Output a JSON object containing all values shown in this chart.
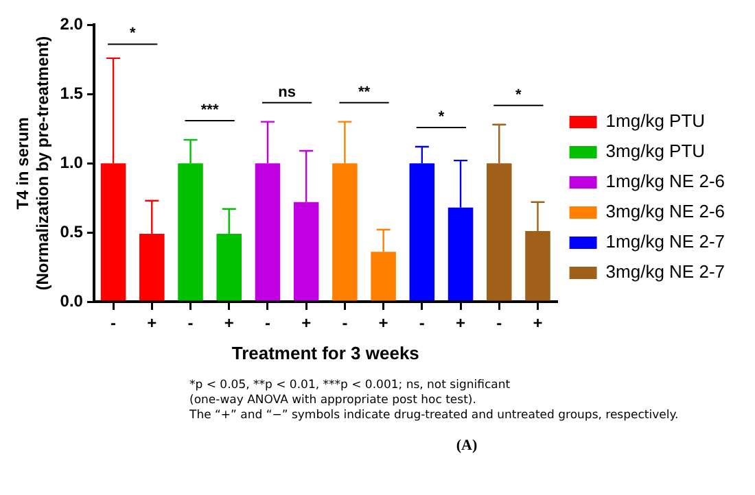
{
  "chart_data": {
    "type": "bar",
    "xlabel": "Treatment for 3 weeks",
    "ylabel": "T4 in serum\n(Normalization by pre-treatment)",
    "categories": [
      "-",
      "+",
      "-",
      "+",
      "-",
      "+",
      "-",
      "+",
      "-",
      "+",
      "-",
      "+"
    ],
    "series": [
      {
        "name": "1mg/kg PTU",
        "color": "#ff0000",
        "values": [
          1.0,
          0.49,
          null,
          null,
          null,
          null,
          null,
          null,
          null,
          null,
          null,
          null
        ],
        "errors": [
          [
            1.0,
            1.76
          ],
          [
            0.49,
            0.73
          ],
          null,
          null,
          null,
          null,
          null,
          null,
          null,
          null,
          null,
          null
        ]
      },
      {
        "name": "3mg/kg PTU",
        "color": "#00c000",
        "values": [
          null,
          null,
          1.0,
          0.49,
          null,
          null,
          null,
          null,
          null,
          null,
          null,
          null
        ],
        "errors": [
          null,
          null,
          [
            1.0,
            1.17
          ],
          [
            0.49,
            0.67
          ],
          null,
          null,
          null,
          null,
          null,
          null,
          null,
          null
        ]
      },
      {
        "name": "1mg/kg NE 2-6",
        "color": "#c000e0",
        "values": [
          null,
          null,
          null,
          null,
          1.0,
          0.72,
          null,
          null,
          null,
          null,
          null,
          null
        ],
        "errors": [
          null,
          null,
          null,
          null,
          [
            1.0,
            1.3
          ],
          [
            0.72,
            1.09
          ],
          null,
          null,
          null,
          null,
          null,
          null
        ]
      },
      {
        "name": "3mg/kg NE 2-6",
        "color": "#ff8000",
        "values": [
          null,
          null,
          null,
          null,
          null,
          null,
          1.0,
          0.36,
          null,
          null,
          null,
          null
        ],
        "errors": [
          null,
          null,
          null,
          null,
          null,
          null,
          [
            1.0,
            1.3
          ],
          [
            0.36,
            0.52
          ],
          null,
          null,
          null,
          null
        ]
      },
      {
        "name": "1mg/kg NE 2-7",
        "color": "#0000ff",
        "values": [
          null,
          null,
          null,
          null,
          null,
          null,
          null,
          null,
          1.0,
          0.68,
          null,
          null
        ],
        "errors": [
          null,
          null,
          null,
          null,
          null,
          null,
          null,
          null,
          [
            1.0,
            1.12
          ],
          [
            0.68,
            1.02
          ],
          null,
          null
        ]
      },
      {
        "name": "3mg/kg NE 2-7",
        "color": "#a0601a",
        "values": [
          null,
          null,
          null,
          null,
          null,
          null,
          null,
          null,
          null,
          null,
          1.0,
          0.51
        ],
        "errors": [
          null,
          null,
          null,
          null,
          null,
          null,
          null,
          null,
          null,
          null,
          [
            1.0,
            1.28
          ],
          [
            0.51,
            0.72
          ]
        ]
      }
    ],
    "ylim": [
      0,
      2.0
    ],
    "yticks": [
      {
        "value": 0,
        "label": "0.0"
      },
      {
        "value": 0.5,
        "label": "0.5"
      },
      {
        "value": 1,
        "label": "1.0"
      },
      {
        "value": 1.5,
        "label": "1.5"
      },
      {
        "value": 2,
        "label": "2.0"
      }
    ],
    "grid": false,
    "legend": "right",
    "annotations": [
      "*",
      "***",
      "ns",
      "**",
      "*",
      "*",
      "*p < 0.05, **p < 0.01, ***p < 0.001; ns, not significant",
      "(one-way ANOVA with appropriate post hoc test).",
      "The “+” and “−” symbols indicate drug-treated and untreated groups, respectively.",
      "(A)"
    ]
  }
}
